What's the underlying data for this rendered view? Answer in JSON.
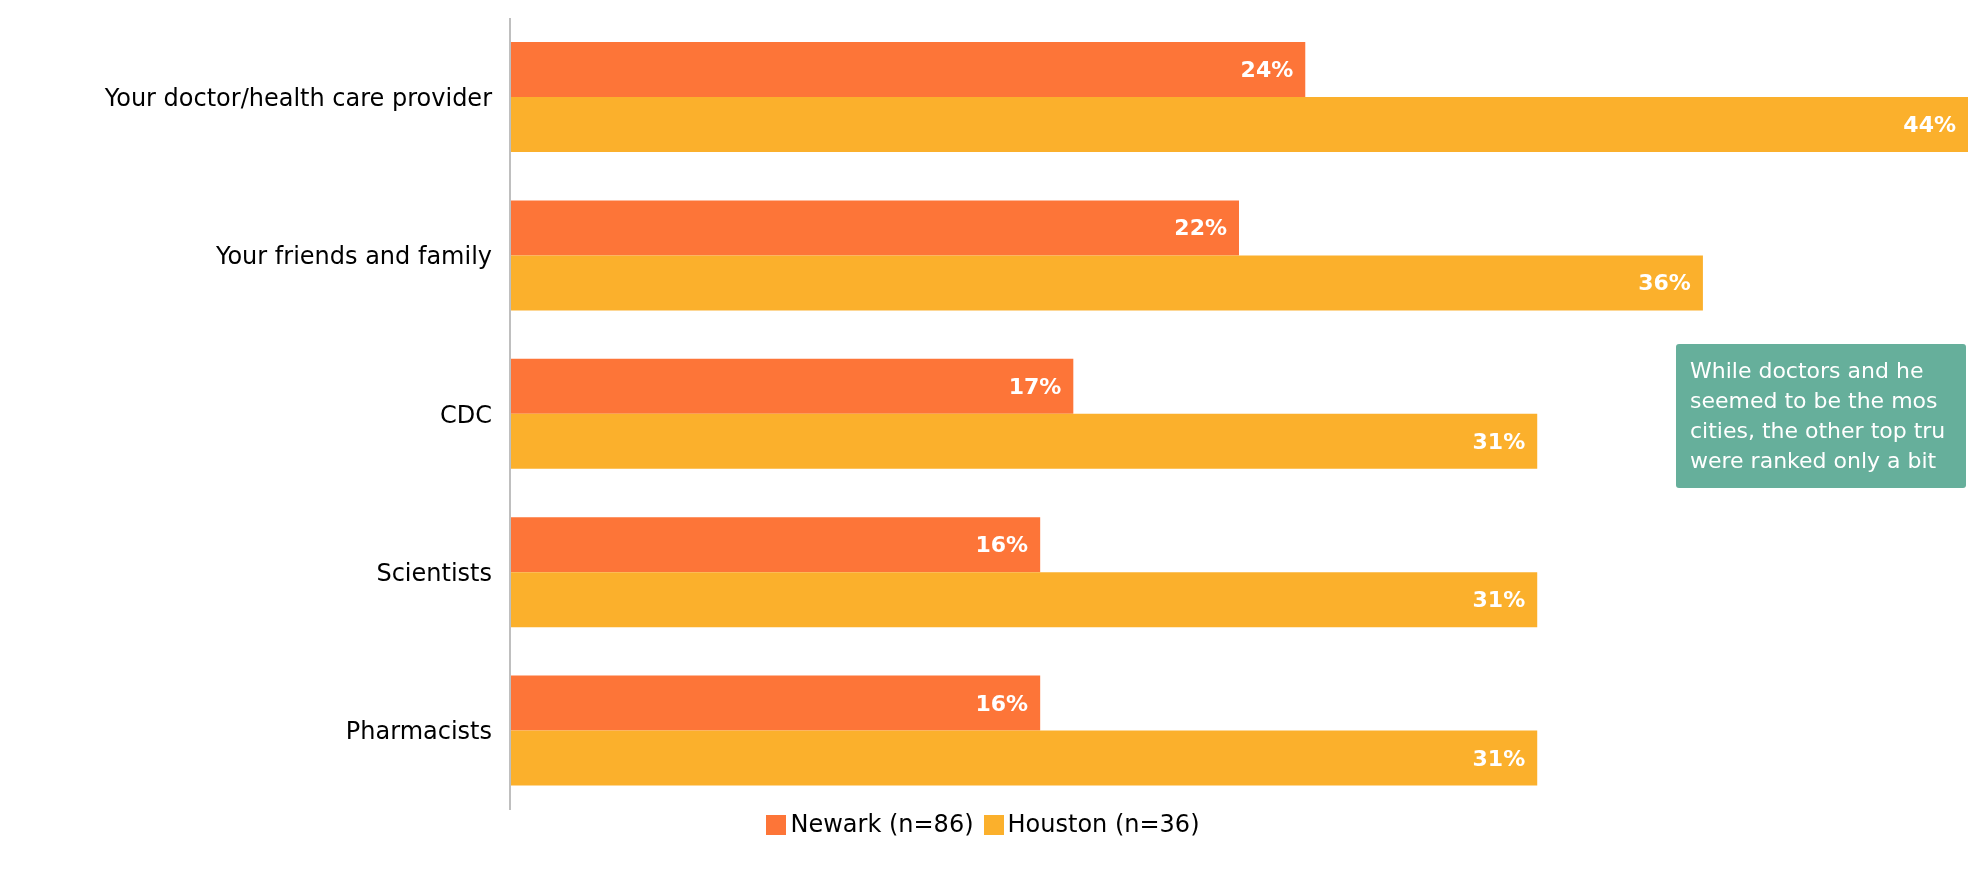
{
  "chart_data": {
    "type": "bar",
    "orientation": "horizontal",
    "categories": [
      "Your doctor/health care provider",
      "Your friends and family",
      "CDC",
      "Scientists",
      "Pharmacists"
    ],
    "series": [
      {
        "name": "Newark (n=86)",
        "color": "#fd7538",
        "values": [
          24,
          22,
          17,
          16,
          16
        ],
        "value_labels": [
          "24%",
          "22%",
          "17%",
          "16%",
          "16%"
        ]
      },
      {
        "name": "Houston (n=36)",
        "color": "#fbb02c",
        "values": [
          44,
          36,
          31,
          31,
          31
        ],
        "value_labels": [
          "44%",
          "36%",
          "31%",
          "31%",
          "31%"
        ]
      }
    ],
    "xlim": [
      0,
      44
    ],
    "tick_labels": "y",
    "legend": "bottom",
    "annotations": [
      "While doctors and he\nseemed to be the mos\ncities, the other top tru\nwere ranked only a bit"
    ]
  }
}
